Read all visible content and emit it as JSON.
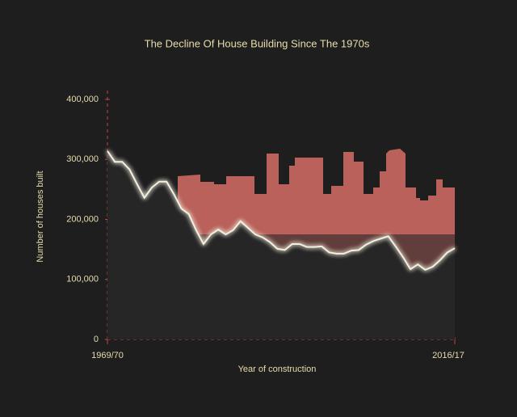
{
  "chart_data": {
    "type": "line",
    "title": "The Decline Of House Building Since The 1970s",
    "xlabel": "Year of construction",
    "ylabel": "Number of houses built",
    "categories": [
      "1969/70",
      null,
      null,
      null,
      null,
      null,
      null,
      null,
      null,
      null,
      null,
      null,
      null,
      null,
      null,
      null,
      null,
      null,
      null,
      null,
      null,
      null,
      null,
      null,
      null,
      null,
      null,
      null,
      null,
      null,
      null,
      null,
      null,
      null,
      null,
      null,
      null,
      null,
      null,
      null,
      null,
      null,
      null,
      null,
      null,
      null,
      null,
      "2016/17"
    ],
    "series": [
      {
        "name": "Houses built",
        "color": "#f4f0e0",
        "values": [
          314000,
          296000,
          296000,
          283000,
          259000,
          236000,
          253000,
          263000,
          263000,
          242000,
          218000,
          209000,
          182000,
          159000,
          175000,
          183000,
          175000,
          182000,
          197000,
          186000,
          175000,
          170000,
          162000,
          151000,
          149000,
          159000,
          159000,
          154000,
          154000,
          155000,
          145000,
          143000,
          143000,
          148000,
          149000,
          158000,
          164000,
          168000,
          172000,
          155000,
          137000,
          117000,
          125000,
          116000,
          121000,
          132000,
          145000,
          152000
        ]
      }
    ],
    "ylim": [
      0,
      400000
    ],
    "yticks": [
      0,
      {
        "value": 100000,
        "label": "100,000"
      },
      {
        "value": 200000,
        "label": "200,000"
      },
      {
        "value": 300000,
        "label": "300,000"
      },
      {
        "value": 400000,
        "label": "400,000"
      }
    ],
    "grid": false
  }
}
